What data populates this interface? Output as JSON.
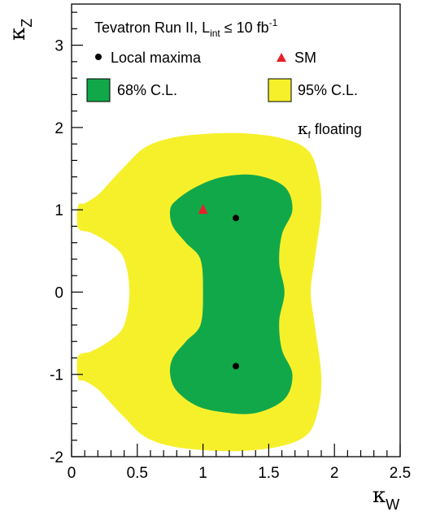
{
  "chart_data": {
    "type": "contour",
    "xlabel": "κ",
    "xlabel_sub": "W",
    "ylabel": "κ",
    "ylabel_sub": "Z",
    "xlim": [
      0,
      2.5
    ],
    "ylim": [
      -2,
      3.5
    ],
    "x_ticks": [
      {
        "value": 0,
        "label": "0"
      },
      {
        "value": 0.5,
        "label": "0.5"
      },
      {
        "value": 1,
        "label": "1"
      },
      {
        "value": 1.5,
        "label": "1.5"
      },
      {
        "value": 2,
        "label": "2"
      },
      {
        "value": 2.5,
        "label": "2.5"
      }
    ],
    "y_ticks": [
      {
        "value": -2,
        "label": "-2"
      },
      {
        "value": -1,
        "label": "-1"
      },
      {
        "value": 0,
        "label": "0"
      },
      {
        "value": 1,
        "label": "1"
      },
      {
        "value": 2,
        "label": "2"
      },
      {
        "value": 3,
        "label": "3"
      }
    ],
    "annotation": {
      "title_main": "Tevatron Run II, L",
      "title_sub": "int",
      "title_rel": " ≤ 10 fb",
      "title_sup": "-1",
      "floating_kappa": "κ",
      "floating_sub": "f",
      "floating_text": " floating"
    },
    "legend": {
      "local_maxima": "Local maxima",
      "sm": "SM",
      "cl68": "68% C.L.",
      "cl95": "95% C.L."
    },
    "colors": {
      "cl68": "#11a84a",
      "cl95": "#f6f02b",
      "sm_marker": "#e8202a",
      "maxima_marker": "#000000"
    },
    "regions": {
      "cl95": [
        [
          0.05,
          1.05
        ],
        [
          0.1,
          1.08
        ],
        [
          0.2,
          1.18
        ],
        [
          0.3,
          1.35
        ],
        [
          0.4,
          1.52
        ],
        [
          0.55,
          1.75
        ],
        [
          0.75,
          1.87
        ],
        [
          1.0,
          1.92
        ],
        [
          1.3,
          1.93
        ],
        [
          1.6,
          1.87
        ],
        [
          1.8,
          1.72
        ],
        [
          1.88,
          1.4
        ],
        [
          1.9,
          1.0
        ],
        [
          1.85,
          0.4
        ],
        [
          1.82,
          0.0
        ],
        [
          1.85,
          -0.4
        ],
        [
          1.9,
          -1.0
        ],
        [
          1.88,
          -1.4
        ],
        [
          1.8,
          -1.72
        ],
        [
          1.6,
          -1.87
        ],
        [
          1.3,
          -1.93
        ],
        [
          1.0,
          -1.92
        ],
        [
          0.75,
          -1.87
        ],
        [
          0.55,
          -1.75
        ],
        [
          0.4,
          -1.52
        ],
        [
          0.3,
          -1.35
        ],
        [
          0.2,
          -1.18
        ],
        [
          0.1,
          -1.08
        ],
        [
          0.05,
          -1.05
        ],
        [
          0.05,
          -0.78
        ],
        [
          0.15,
          -0.72
        ],
        [
          0.3,
          -0.58
        ],
        [
          0.4,
          -0.4
        ],
        [
          0.44,
          0.0
        ],
        [
          0.4,
          0.4
        ],
        [
          0.3,
          0.58
        ],
        [
          0.15,
          0.72
        ],
        [
          0.05,
          0.78
        ]
      ],
      "cl68": [
        [
          0.75,
          1.0
        ],
        [
          0.8,
          1.12
        ],
        [
          0.95,
          1.28
        ],
        [
          1.15,
          1.4
        ],
        [
          1.4,
          1.42
        ],
        [
          1.62,
          1.28
        ],
        [
          1.68,
          1.0
        ],
        [
          1.6,
          0.7
        ],
        [
          1.58,
          0.35
        ],
        [
          1.62,
          0.0
        ],
        [
          1.58,
          -0.35
        ],
        [
          1.6,
          -0.7
        ],
        [
          1.68,
          -1.0
        ],
        [
          1.62,
          -1.3
        ],
        [
          1.4,
          -1.47
        ],
        [
          1.15,
          -1.46
        ],
        [
          0.95,
          -1.38
        ],
        [
          0.8,
          -1.2
        ],
        [
          0.75,
          -1.0
        ],
        [
          0.77,
          -0.8
        ],
        [
          0.87,
          -0.6
        ],
        [
          0.98,
          -0.4
        ],
        [
          1.0,
          0.0
        ],
        [
          0.98,
          0.4
        ],
        [
          0.87,
          0.6
        ],
        [
          0.77,
          0.8
        ]
      ]
    },
    "local_maxima": [
      {
        "x": 1.25,
        "y": 0.9
      },
      {
        "x": 1.25,
        "y": -0.9
      }
    ],
    "sm_point": {
      "x": 1.0,
      "y": 1.0
    }
  }
}
